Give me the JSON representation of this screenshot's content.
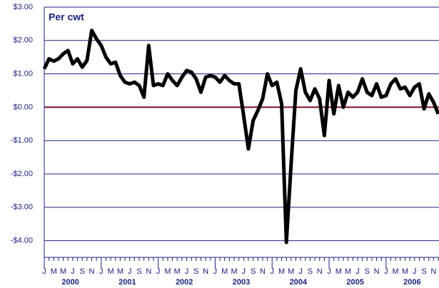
{
  "chart_data": {
    "type": "line",
    "title": "Per cwt",
    "categories": [
      "J",
      null,
      "M",
      null,
      "M",
      null,
      "J",
      null,
      "S",
      null,
      "N",
      null,
      "J",
      null,
      "M",
      null,
      "M",
      null,
      "J",
      null,
      "S",
      null,
      "N",
      null,
      "J",
      null,
      "M",
      null,
      "M",
      null,
      "J",
      null,
      "S",
      null,
      "N",
      null,
      "J",
      null,
      "M",
      null,
      "M",
      null,
      "J",
      null,
      "S",
      null,
      "N",
      null,
      "J",
      null,
      "M",
      null,
      "M",
      null,
      "J",
      null,
      "S",
      null,
      "N",
      null,
      "J",
      null,
      "M",
      null,
      "M",
      null,
      "J",
      null,
      "S",
      null,
      "N",
      null,
      "J",
      null,
      "M",
      null,
      "M",
      null,
      "J",
      null,
      "S",
      null,
      "N",
      null
    ],
    "year_labels": [
      "2000",
      "2001",
      "2002",
      "2003",
      "2004",
      "2005",
      "2006"
    ],
    "series": [
      {
        "color": "#000000",
        "values": [
          1.15,
          1.45,
          1.38,
          1.45,
          1.6,
          1.7,
          1.3,
          1.45,
          1.2,
          1.4,
          2.3,
          2.05,
          1.85,
          1.5,
          1.3,
          1.35,
          0.95,
          0.75,
          0.7,
          0.75,
          0.65,
          0.3,
          1.85,
          0.65,
          0.7,
          0.65,
          1.0,
          0.8,
          0.65,
          0.9,
          1.1,
          1.05,
          0.85,
          0.45,
          0.9,
          0.95,
          0.9,
          0.75,
          0.95,
          0.8,
          0.7,
          0.7,
          -0.25,
          -1.25,
          -0.4,
          -0.1,
          0.25,
          1.0,
          0.65,
          0.75,
          0.1,
          -4.05,
          -1.7,
          0.5,
          1.15,
          0.45,
          0.2,
          0.55,
          0.25,
          -0.85,
          0.8,
          -0.2,
          0.65,
          0.0,
          0.45,
          0.3,
          0.45,
          0.85,
          0.45,
          0.35,
          0.7,
          0.3,
          0.35,
          0.7,
          0.85,
          0.55,
          0.6,
          0.35,
          0.6,
          0.7,
          -0.05,
          0.4,
          0.15,
          -0.2
        ]
      }
    ],
    "ylim": [
      -4.5,
      3
    ],
    "yticks": [
      {
        "value": -4,
        "label": "-$4.00"
      },
      {
        "value": -3,
        "label": "-$3.00"
      },
      {
        "value": -2,
        "label": "-$2.00"
      },
      {
        "value": -1,
        "label": "-$1.00"
      },
      {
        "value": 0,
        "label": "$0.00"
      },
      {
        "value": 1,
        "label": "$1.00"
      },
      {
        "value": 2,
        "label": "$2.00"
      },
      {
        "value": 3,
        "label": "$3.00"
      }
    ],
    "grid": true,
    "zero_line_color": "#7b1020",
    "grid_color": "#1a237e"
  }
}
